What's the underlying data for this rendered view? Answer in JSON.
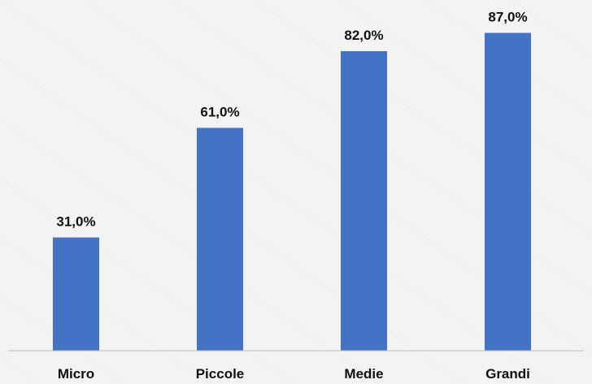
{
  "chart_data": {
    "type": "bar",
    "categories": [
      "Micro",
      "Piccole",
      "Medie",
      "Grandi"
    ],
    "values": [
      31.0,
      61.0,
      82.0,
      87.0
    ],
    "value_labels": [
      "31,0%",
      "61,0%",
      "82,0%",
      "87,0%"
    ],
    "title": "",
    "xlabel": "",
    "ylabel": "",
    "ylim": [
      0,
      100
    ],
    "grid": false,
    "legend": "none",
    "bar_color": "#4472c4",
    "axis_color": "#bfbfbf"
  }
}
